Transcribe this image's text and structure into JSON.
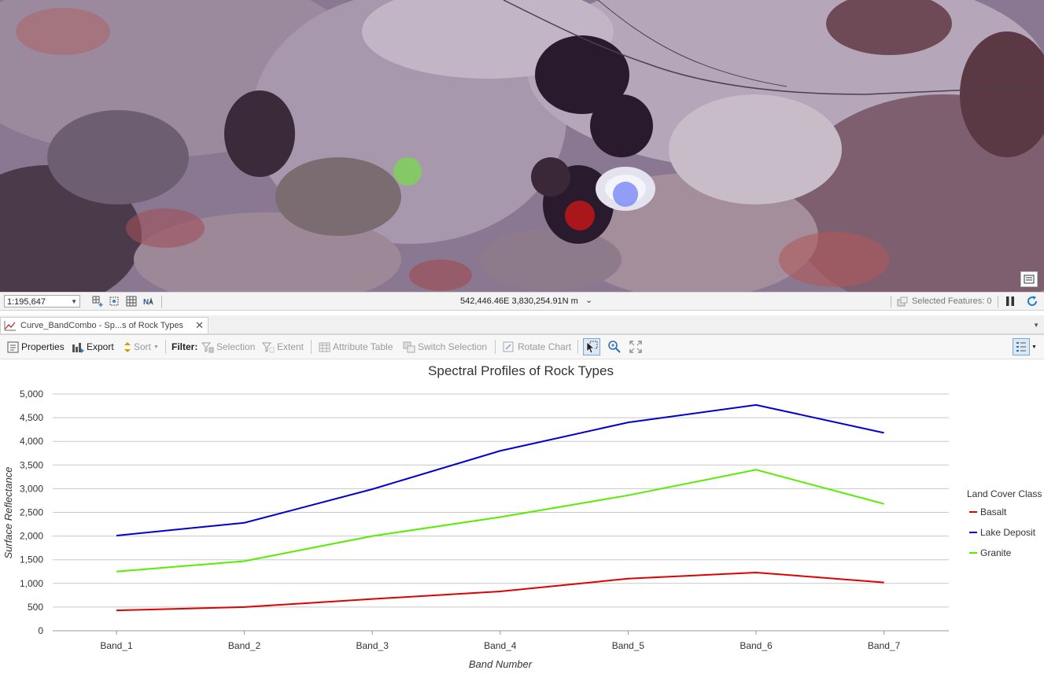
{
  "map": {
    "status": {
      "scale": "1:195,647",
      "coordinates": "542,446.46E 3,830,254.91N m",
      "selected_features": "Selected Features: 0"
    }
  },
  "tab": {
    "title": "Curve_BandCombo - Sp...s of Rock Types"
  },
  "toolbar": {
    "properties": "Properties",
    "export": "Export",
    "sort": "Sort",
    "filter": "Filter:",
    "selection": "Selection",
    "extent": "Extent",
    "attribute_table": "Attribute Table",
    "switch_selection": "Switch Selection",
    "rotate_chart": "Rotate Chart"
  },
  "chart_data": {
    "type": "line",
    "title": "Spectral Profiles of Rock Types",
    "xlabel": "Band Number",
    "ylabel": "Surface Reflectance",
    "categories": [
      "Band_1",
      "Band_2",
      "Band_3",
      "Band_4",
      "Band_5",
      "Band_6",
      "Band_7"
    ],
    "ylim": [
      0,
      5000
    ],
    "yticks": [
      "0",
      "500",
      "1,000",
      "1,500",
      "2,000",
      "2,500",
      "3,000",
      "3,500",
      "4,000",
      "4,500",
      "5,000"
    ],
    "grid": true,
    "legend_title": "Land Cover Class",
    "legend_position": "right",
    "series": [
      {
        "name": "Basalt",
        "color": "#e00000",
        "values": [
          430,
          500,
          670,
          830,
          1100,
          1230,
          1020
        ]
      },
      {
        "name": "Lake Deposit",
        "color": "#0000d0",
        "values": [
          2010,
          2280,
          2990,
          3800,
          4400,
          4770,
          4180
        ]
      },
      {
        "name": "Granite",
        "color": "#55ee00",
        "values": [
          1250,
          1470,
          2000,
          2400,
          2860,
          3400,
          2680
        ]
      }
    ]
  }
}
